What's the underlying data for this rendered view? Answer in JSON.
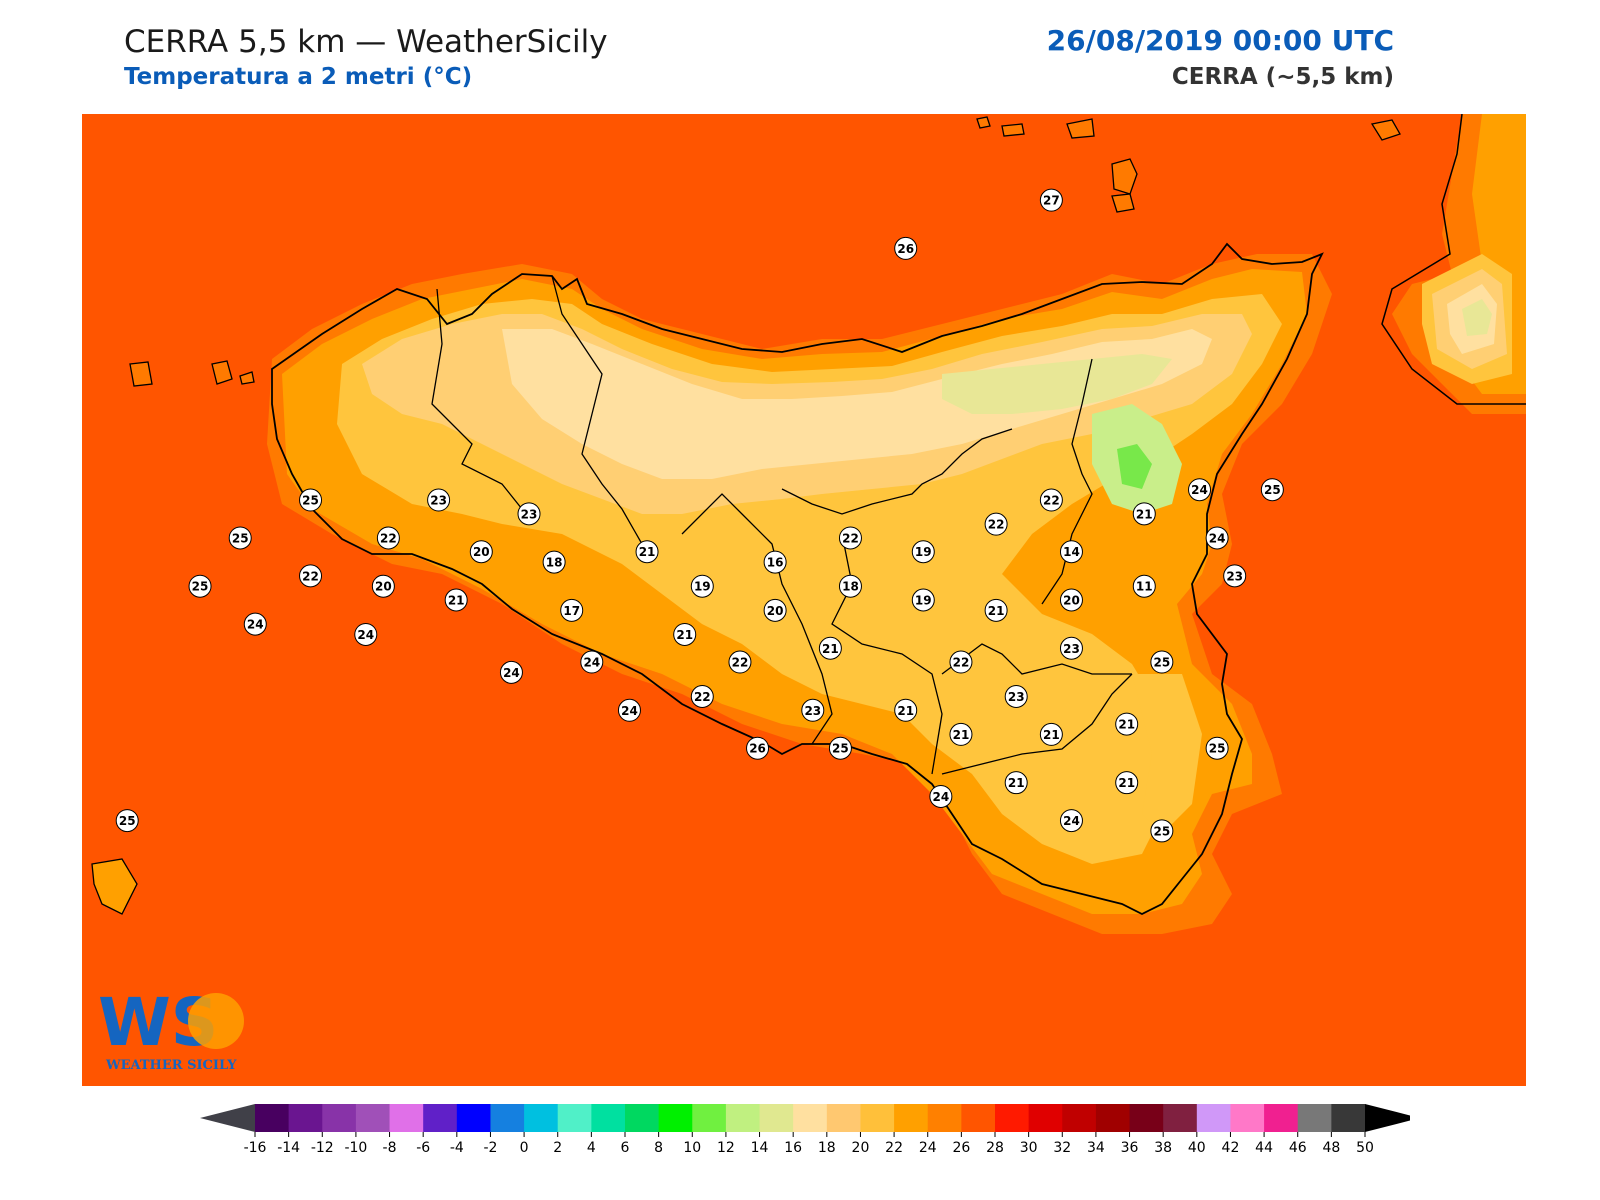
{
  "header": {
    "title": "CERRA 5,5 km — WeatherSicily",
    "subtitle": "Temperatura a 2 metri (°C)",
    "datetime": "26/08/2019 00:00 UTC",
    "model": "CERRA (~5,5 km)"
  },
  "logo": {
    "letters": "WS",
    "name": "WEATHER SICILY"
  },
  "colors": {
    "sea": "#ff5500",
    "t26": "#ff7a00",
    "t24": "#ffa000",
    "t22": "#ffc53d",
    "t20": "#ffcf73",
    "t18": "#ffe0a0",
    "t16": "#e8e796",
    "t14": "#c9ee8a",
    "t12": "#78e84a",
    "coast": "#000000",
    "label_bg": "#ffffff"
  },
  "colorbar": {
    "ticks": [
      "-16",
      "-14",
      "-12",
      "-10",
      "-8",
      "-6",
      "-4",
      "-2",
      "0",
      "2",
      "4",
      "6",
      "8",
      "10",
      "12",
      "14",
      "16",
      "18",
      "20",
      "22",
      "24",
      "26",
      "28",
      "30",
      "32",
      "34",
      "36",
      "38",
      "40",
      "42",
      "44",
      "46",
      "48",
      "50"
    ],
    "colors": [
      "#480060",
      "#6a1590",
      "#8833a8",
      "#a050b8",
      "#e070e8",
      "#6020c8",
      "#0000ff",
      "#1580e0",
      "#00c0e0",
      "#50f0c8",
      "#00e0a0",
      "#00d860",
      "#00f000",
      "#70f040",
      "#c0f080",
      "#e0e890",
      "#ffe0a0",
      "#ffc870",
      "#ffc03a",
      "#ffa000",
      "#ff8000",
      "#ff5500",
      "#ff1a00",
      "#e00000",
      "#c00000",
      "#a00000",
      "#780018",
      "#802040",
      "#d098f8",
      "#ff78c8",
      "#f02090",
      "#787878",
      "#383838"
    ],
    "under_color": "#404048",
    "over_color": "#000000"
  },
  "stations": [
    {
      "value": "27",
      "x": 15.81,
      "y": 38.95
    },
    {
      "value": "26",
      "x": 15.23,
      "y": 38.81
    },
    {
      "value": "25",
      "x": 12.86,
      "y": 38.08
    },
    {
      "value": "23",
      "x": 13.37,
      "y": 38.08
    },
    {
      "value": "23",
      "x": 13.73,
      "y": 38.04
    },
    {
      "value": "25",
      "x": 12.58,
      "y": 37.97
    },
    {
      "value": "22",
      "x": 13.17,
      "y": 37.97
    },
    {
      "value": "20",
      "x": 13.54,
      "y": 37.93
    },
    {
      "value": "18",
      "x": 13.83,
      "y": 37.9
    },
    {
      "value": "21",
      "x": 14.2,
      "y": 37.93
    },
    {
      "value": "16",
      "x": 14.71,
      "y": 37.9
    },
    {
      "value": "22",
      "x": 15.01,
      "y": 37.97
    },
    {
      "value": "19",
      "x": 15.3,
      "y": 37.93
    },
    {
      "value": "22",
      "x": 15.59,
      "y": 38.01
    },
    {
      "value": "22",
      "x": 15.81,
      "y": 38.08
    },
    {
      "value": "21",
      "x": 16.18,
      "y": 38.04
    },
    {
      "value": "24",
      "x": 16.4,
      "y": 38.11
    },
    {
      "value": "25",
      "x": 16.69,
      "y": 38.11
    },
    {
      "value": "14",
      "x": 15.89,
      "y": 37.93
    },
    {
      "value": "24",
      "x": 16.47,
      "y": 37.97
    },
    {
      "value": "22",
      "x": 12.86,
      "y": 37.86
    },
    {
      "value": "25",
      "x": 12.42,
      "y": 37.83
    },
    {
      "value": "20",
      "x": 13.15,
      "y": 37.83
    },
    {
      "value": "21",
      "x": 13.44,
      "y": 37.79
    },
    {
      "value": "17",
      "x": 13.9,
      "y": 37.76
    },
    {
      "value": "19",
      "x": 14.42,
      "y": 37.83
    },
    {
      "value": "18",
      "x": 15.01,
      "y": 37.83
    },
    {
      "value": "19",
      "x": 15.3,
      "y": 37.79
    },
    {
      "value": "20",
      "x": 14.71,
      "y": 37.76
    },
    {
      "value": "21",
      "x": 15.59,
      "y": 37.76
    },
    {
      "value": "20",
      "x": 15.89,
      "y": 37.79
    },
    {
      "value": "11",
      "x": 16.18,
      "y": 37.83
    },
    {
      "value": "23",
      "x": 16.54,
      "y": 37.86
    },
    {
      "value": "24",
      "x": 12.64,
      "y": 37.72
    },
    {
      "value": "24",
      "x": 13.08,
      "y": 37.69
    },
    {
      "value": "21",
      "x": 14.35,
      "y": 37.69
    },
    {
      "value": "21",
      "x": 14.93,
      "y": 37.65
    },
    {
      "value": "23",
      "x": 15.89,
      "y": 37.65
    },
    {
      "value": "24",
      "x": 13.98,
      "y": 37.61
    },
    {
      "value": "22",
      "x": 14.57,
      "y": 37.61
    },
    {
      "value": "22",
      "x": 15.45,
      "y": 37.61
    },
    {
      "value": "25",
      "x": 16.25,
      "y": 37.61
    },
    {
      "value": "24",
      "x": 13.66,
      "y": 37.58
    },
    {
      "value": "22",
      "x": 14.42,
      "y": 37.51
    },
    {
      "value": "23",
      "x": 15.67,
      "y": 37.51
    },
    {
      "value": "24",
      "x": 14.13,
      "y": 37.47
    },
    {
      "value": "23",
      "x": 14.86,
      "y": 37.47
    },
    {
      "value": "21",
      "x": 15.23,
      "y": 37.47
    },
    {
      "value": "21",
      "x": 15.45,
      "y": 37.4
    },
    {
      "value": "21",
      "x": 15.81,
      "y": 37.4
    },
    {
      "value": "21",
      "x": 16.11,
      "y": 37.43
    },
    {
      "value": "26",
      "x": 14.64,
      "y": 37.36
    },
    {
      "value": "25",
      "x": 14.97,
      "y": 37.36
    },
    {
      "value": "25",
      "x": 16.47,
      "y": 37.36
    },
    {
      "value": "21",
      "x": 15.67,
      "y": 37.26
    },
    {
      "value": "21",
      "x": 16.11,
      "y": 37.26
    },
    {
      "value": "24",
      "x": 15.37,
      "y": 37.22
    },
    {
      "value": "24",
      "x": 15.89,
      "y": 37.15
    },
    {
      "value": "25",
      "x": 16.25,
      "y": 37.12
    },
    {
      "value": "25",
      "x": 12.13,
      "y": 37.15
    }
  ]
}
